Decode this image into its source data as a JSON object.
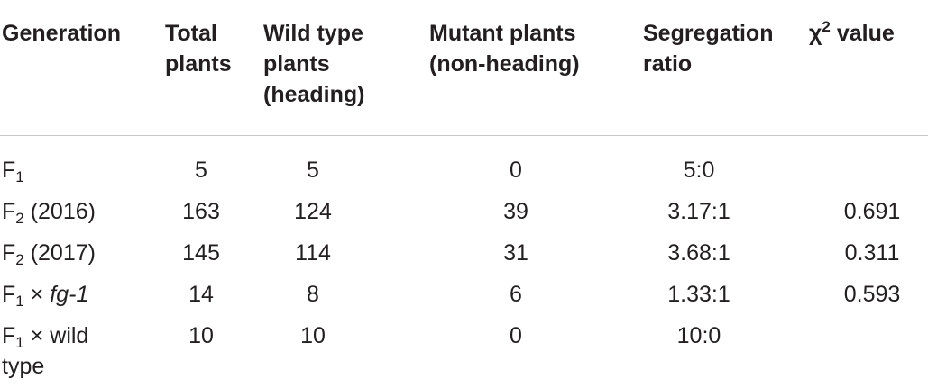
{
  "table": {
    "headers": {
      "generation": "Generation",
      "total": [
        "Total",
        "plants"
      ],
      "wild": [
        "Wild type",
        "plants",
        "(heading)"
      ],
      "mutant": [
        "Mutant plants",
        "(non-heading)"
      ],
      "ratio": [
        "Segregation",
        "ratio"
      ],
      "chi": {
        "symbol": "χ",
        "sup": "2",
        "rest": "value"
      }
    },
    "rows": [
      {
        "gen": "F",
        "gen_sub": "1",
        "gen_suffix": "",
        "total": "5",
        "wild": "5",
        "mutant": "0",
        "ratio": "5:0",
        "chi": ""
      },
      {
        "gen": "F",
        "gen_sub": "2",
        "gen_suffix": "(2016)",
        "total": "163",
        "wild": "124",
        "mutant": "39",
        "ratio": "3.17:1",
        "chi": "0.691"
      },
      {
        "gen": "F",
        "gen_sub": "2",
        "gen_suffix": "(2017)",
        "total": "145",
        "wild": "114",
        "mutant": "31",
        "ratio": "3.68:1",
        "chi": "0.311"
      },
      {
        "gen": "F",
        "gen_sub": "1",
        "gen_cross": "×",
        "gen_italic": "fg-1",
        "total": "14",
        "wild": "8",
        "mutant": "6",
        "ratio": "1.33:1",
        "chi": "0.593"
      },
      {
        "gen": "F",
        "gen_sub": "1",
        "gen_cross": "×",
        "gen_line1": "wild",
        "gen_line2": "type",
        "total": "10",
        "wild": "10",
        "mutant": "0",
        "ratio": "10:0",
        "chi": ""
      }
    ]
  }
}
